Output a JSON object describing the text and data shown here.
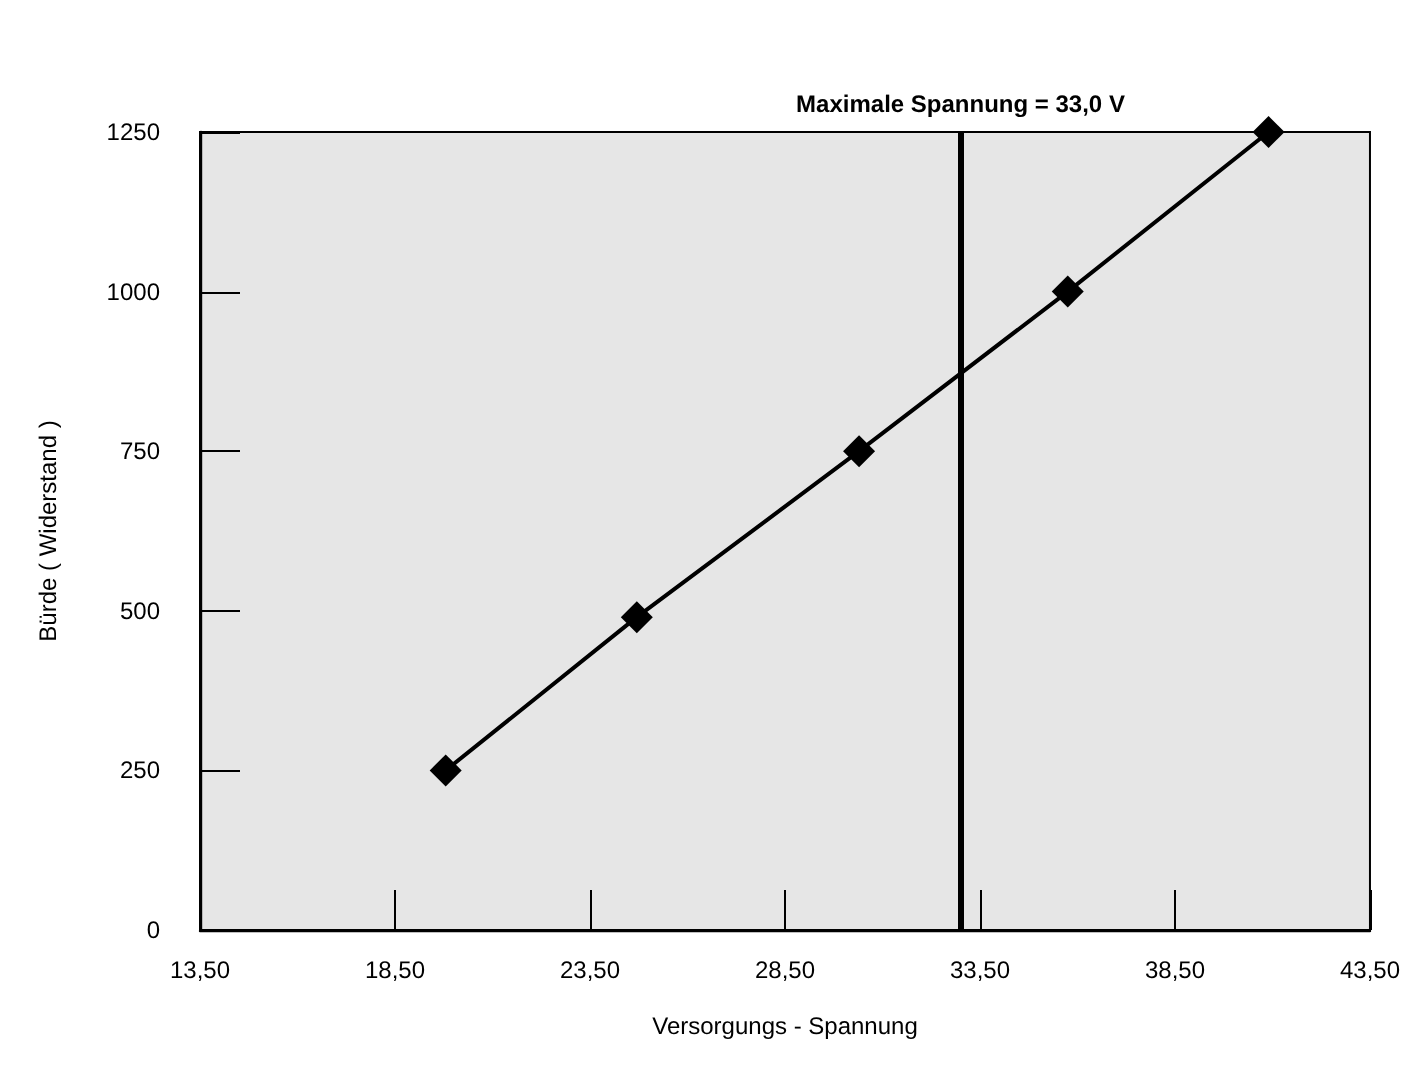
{
  "chart_data": {
    "type": "line",
    "xlabel": "Versorgungs - Spannung",
    "ylabel": "Bürde ( Widerstand )",
    "x": [
      19.8,
      24.7,
      30.4,
      35.75,
      40.9
    ],
    "series": [
      {
        "color": "#000000",
        "values": [
          250,
          490,
          750,
          1000,
          1250
        ]
      }
    ],
    "xlim": [
      13.5,
      43.5
    ],
    "xticks": [
      {
        "value": 13.5,
        "label": "13,50"
      },
      {
        "value": 18.5,
        "label": "18,50"
      },
      {
        "value": 23.5,
        "label": "23,50"
      },
      {
        "value": 28.5,
        "label": "28,50"
      },
      {
        "value": 33.5,
        "label": "33,50"
      },
      {
        "value": 38.5,
        "label": "38,50"
      },
      {
        "value": 43.5,
        "label": "43,50"
      }
    ],
    "ylim": [
      0,
      1250
    ],
    "yticks": [
      0,
      250,
      500,
      750,
      1000,
      1250
    ],
    "ref_lines": [
      {
        "axis": "x",
        "value": 33,
        "label": "Maximale Spannung = 33,0 V",
        "color": "#000000"
      }
    ],
    "grid": false,
    "marker": "diamond",
    "line_style": "solid"
  }
}
